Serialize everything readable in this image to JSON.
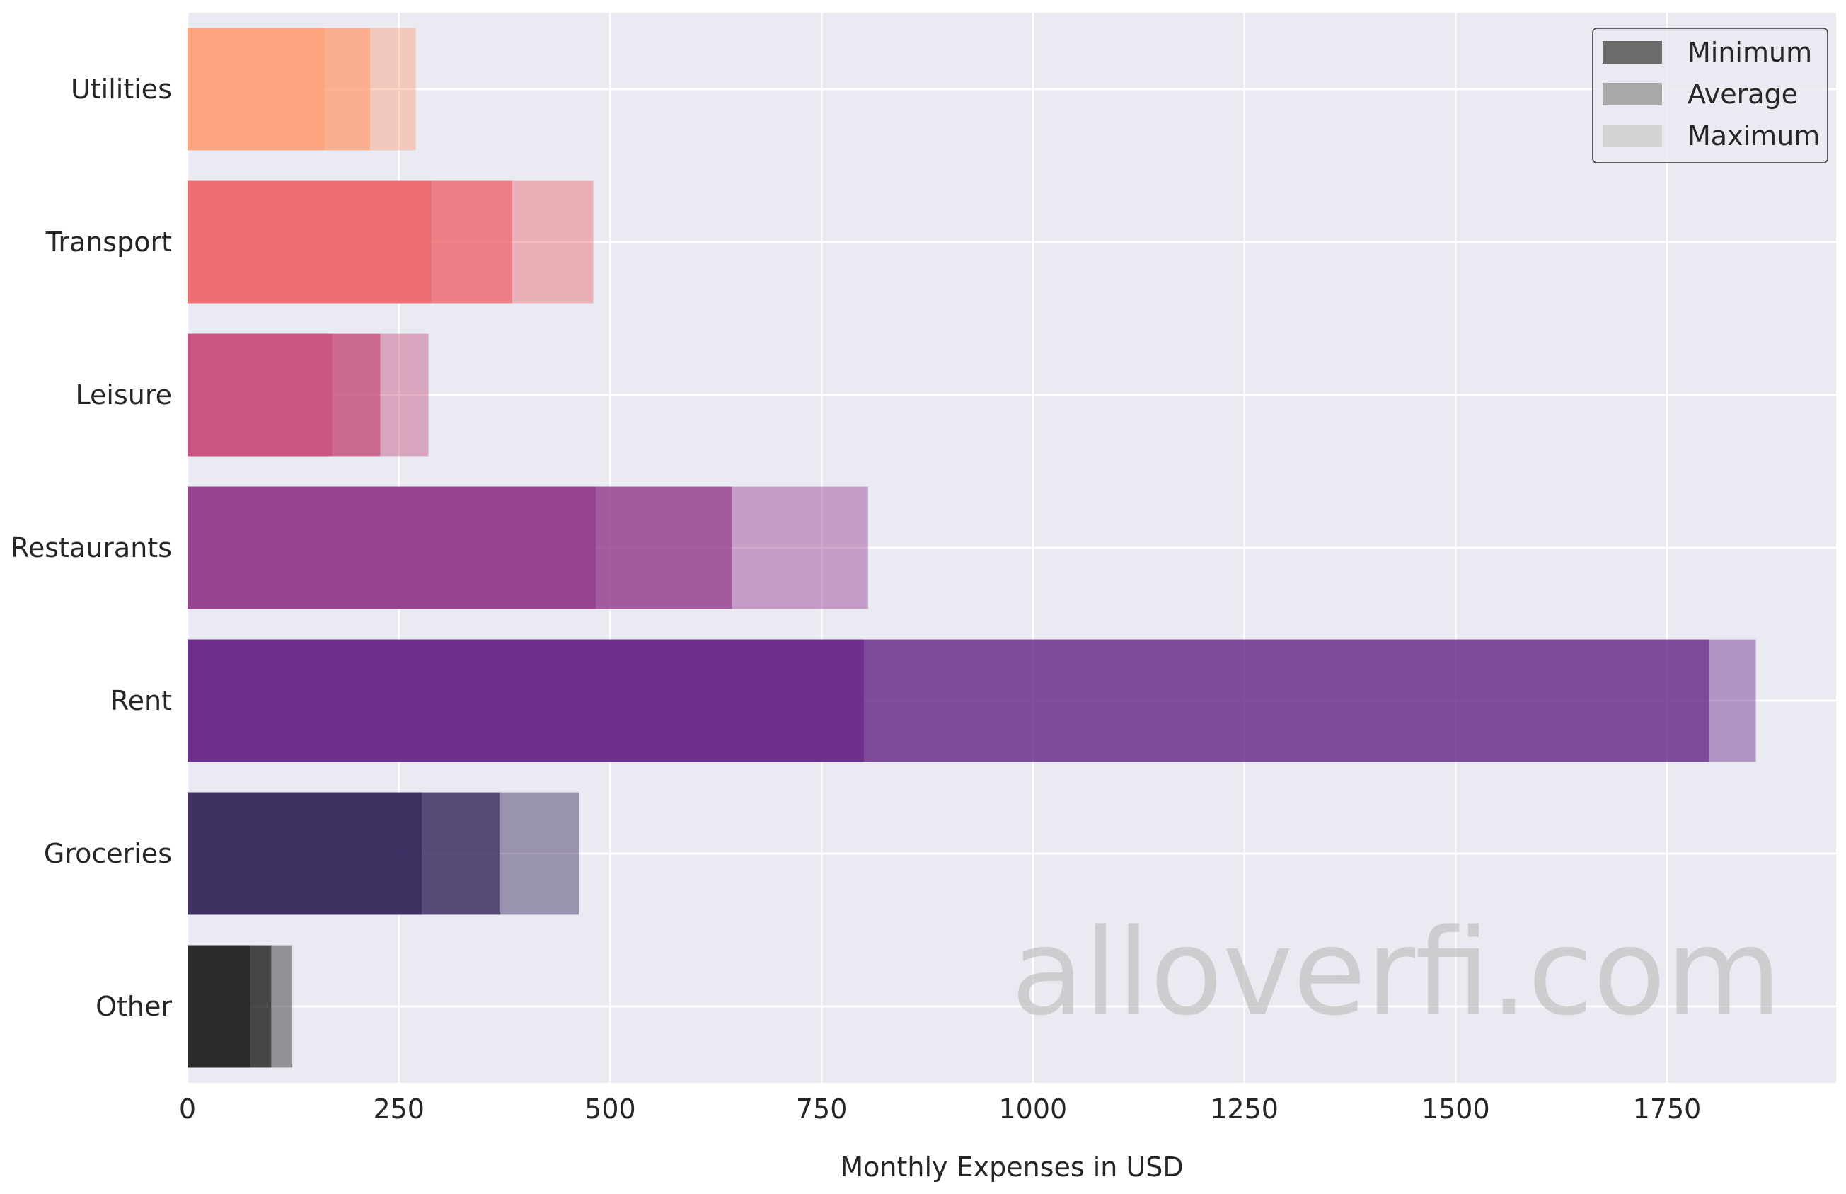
{
  "chart_data": {
    "type": "bar",
    "orientation": "horizontal",
    "categories": [
      "Utilities",
      "Transport",
      "Leisure",
      "Restaurants",
      "Rent",
      "Groceries",
      "Other"
    ],
    "category_colors": [
      "#fca27b",
      "#ee6a6f",
      "#c8517f",
      "#94408d",
      "#6a2c8a",
      "#3a2b5e",
      "#262626"
    ],
    "series": [
      {
        "name": "Minimum",
        "values": [
          162,
          288,
          171,
          483,
          800,
          277,
          74
        ],
        "opacity": 0.85
      },
      {
        "name": "Average",
        "values": [
          216,
          384,
          228,
          644,
          1800,
          370,
          99
        ],
        "opacity": 0.7
      },
      {
        "name": "Maximum",
        "values": [
          270,
          480,
          285,
          805,
          1855,
          463,
          124
        ],
        "opacity": 0.45
      }
    ],
    "xlabel": "Monthly Expenses in USD",
    "ylabel": "",
    "xlim": [
      0,
      1950
    ],
    "xticks": [
      0,
      250,
      500,
      750,
      1000,
      1250,
      1500,
      1750
    ],
    "xtick_labels": [
      "0",
      "250",
      "500",
      "750",
      "1000",
      "1250",
      "1500",
      "1750"
    ],
    "grid": true,
    "legend_position": "top-right",
    "legend_colors": [
      "#6b6b6b",
      "#a8a8a8",
      "#d4d4d4"
    ],
    "background_color": "#eaeaf2",
    "grid_color": "#ffffff"
  },
  "watermark": {
    "text": "alloverfi.com"
  }
}
